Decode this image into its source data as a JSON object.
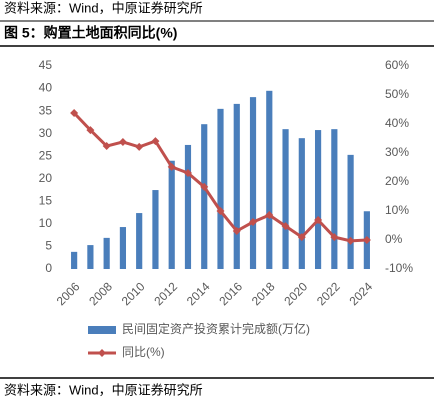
{
  "source_top": "资料来源：Wind，中原证券研究所",
  "source_bottom": "资料来源：Wind，中原证券研究所",
  "chart_data": {
    "type": "bar_line",
    "title": "图 5：购置土地面积同比(%)",
    "categories": [
      "2006",
      null,
      "2008",
      null,
      "2010",
      null,
      "2012",
      null,
      "2014",
      null,
      "2016",
      null,
      "2018",
      null,
      "2020",
      null,
      "2022",
      null,
      "2024"
    ],
    "series": [
      {
        "name": "民间固定资产投资累计完成额(万亿)",
        "type": "bar",
        "color": "#4a7ebb",
        "values": [
          3.8,
          5.3,
          6.9,
          9.3,
          12.4,
          17.5,
          24,
          27.5,
          32.1,
          35.5,
          36.6,
          38.1,
          39.5,
          31,
          29,
          30.8,
          31,
          25.3,
          12.8
        ]
      },
      {
        "name": "同比(%)",
        "type": "line",
        "axis": "y2",
        "color": "#c0504d",
        "values": [
          43.8,
          37.9,
          32.4,
          33.8,
          32.1,
          34.1,
          25.2,
          23.1,
          18.3,
          10,
          3.1,
          6.2,
          8.6,
          4.8,
          1,
          6.9,
          1,
          -0.3,
          0
        ]
      }
    ],
    "ylim": [
      0,
      45
    ],
    "yticks": [
      0,
      5,
      10,
      15,
      20,
      25,
      30,
      35,
      40,
      45
    ],
    "y2lim": [
      -10,
      60
    ],
    "y2ticks": [
      {
        "value": -10,
        "label": "-10%"
      },
      {
        "value": 0,
        "label": "0%"
      },
      {
        "value": 10,
        "label": "10%"
      },
      {
        "value": 20,
        "label": "20%"
      },
      {
        "value": 30,
        "label": "30%"
      },
      {
        "value": 40,
        "label": "40%"
      },
      {
        "value": 50,
        "label": "50%"
      },
      {
        "value": 60,
        "label": "60%"
      }
    ],
    "legend": "bottom"
  }
}
